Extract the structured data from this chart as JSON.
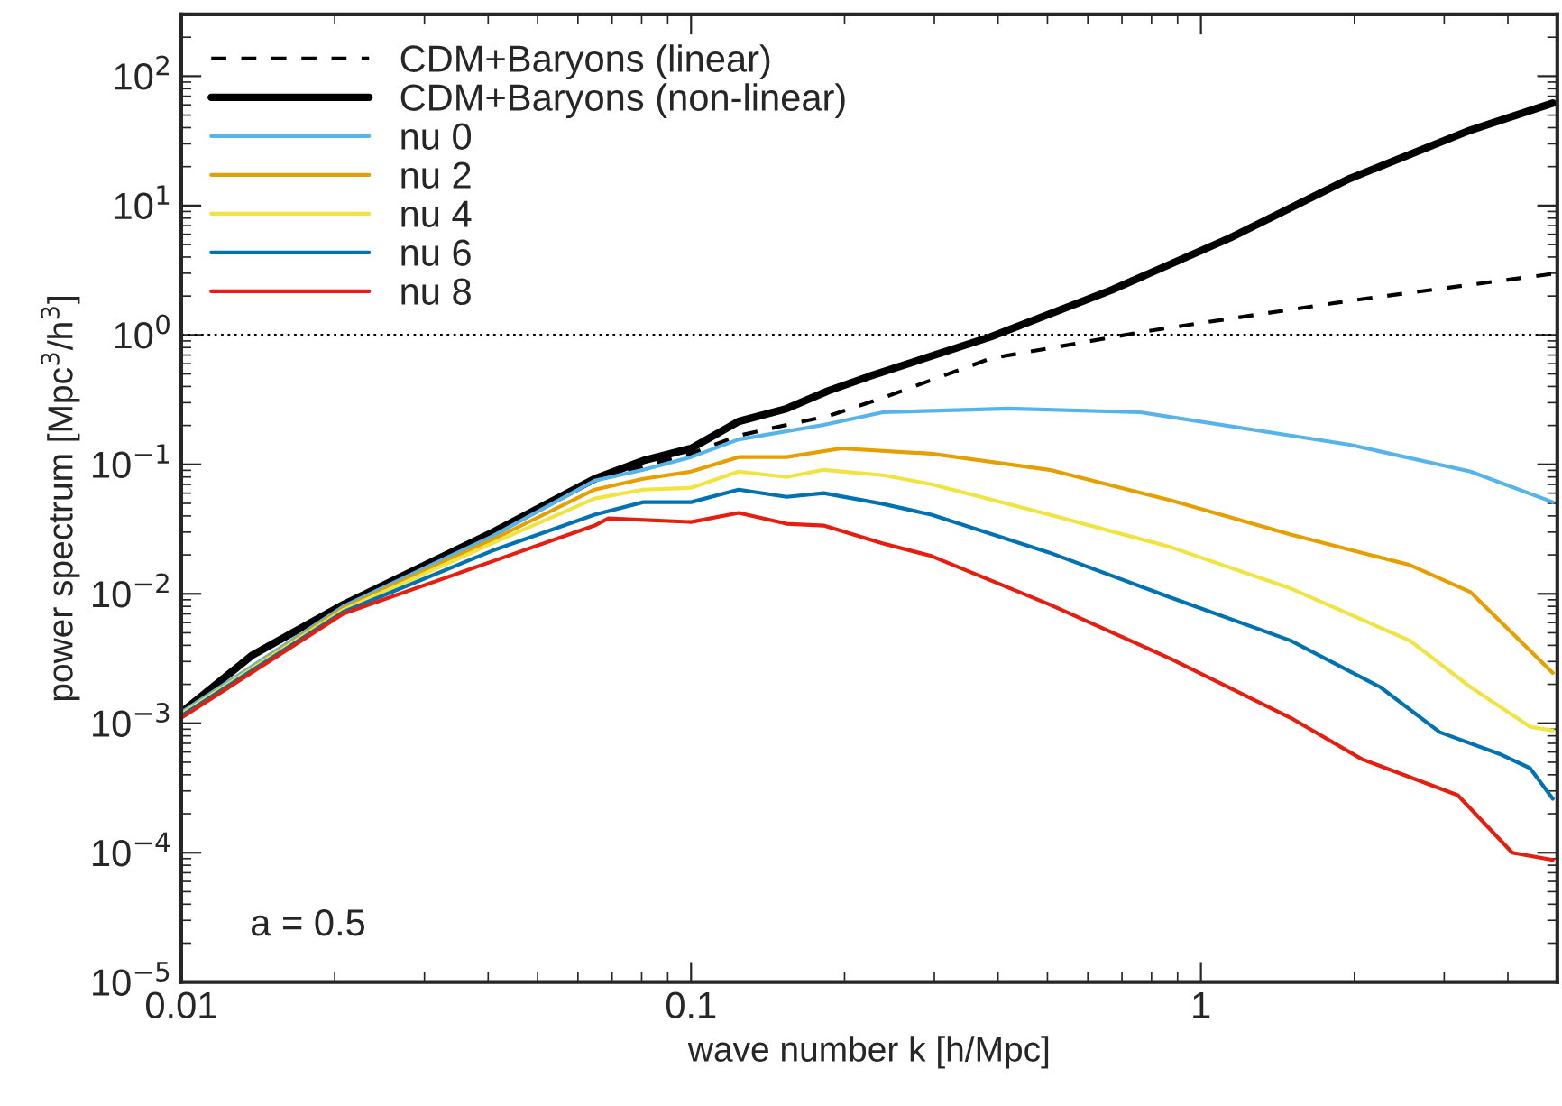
{
  "chart_data": {
    "type": "line",
    "xlabel": "wave number k [h/Mpc]",
    "ylabel": "power spectrum [Mpc$^{3}$/h$^{3}$]",
    "log": "xy",
    "xlim": [
      0.01,
      5
    ],
    "ylim": [
      1e-05,
      300
    ],
    "xticks": [
      0.01,
      0.1,
      1
    ],
    "yticks": [
      {
        "value": 1e-05,
        "label": "10$^{−5}$"
      },
      {
        "value": 0.0001,
        "label": "10$^{−4}$"
      },
      {
        "value": 0.001,
        "label": "10$^{−3}$"
      },
      {
        "value": 0.01,
        "label": "10$^{−2}$"
      },
      {
        "value": 0.1,
        "label": "10$^{−1}$"
      },
      {
        "value": 1,
        "label": "10$^{0}$"
      },
      {
        "value": 10,
        "label": "10$^{1}$"
      },
      {
        "value": 100,
        "label": "10$^{2}$"
      }
    ],
    "grid": false,
    "legend": "top left",
    "marker": "none",
    "ref_lines": [
      {
        "axis": "y",
        "value": 1,
        "color": "#000000",
        "line_style": "dotted"
      }
    ],
    "annotations": [
      "a = 0.5"
    ],
    "series": [
      {
        "name": "CDM+Baryons (linear)",
        "color": "#000000",
        "line_style": "dashed",
        "x": [
          0.01,
          0.0138,
          0.0208,
          0.0407,
          0.0647,
          0.1,
          0.124,
          0.154,
          0.186,
          0.238,
          0.387,
          0.783,
          1.96,
          4.9
        ],
        "values": [
          0.00121,
          0.00337,
          0.00826,
          0.0297,
          0.0774,
          0.121,
          0.167,
          0.202,
          0.237,
          0.327,
          0.659,
          1.07,
          1.84,
          2.97
        ]
      },
      {
        "name": "CDM+Baryons (non-linear)",
        "color": "#000000",
        "line_style": "solid",
        "x": [
          0.01,
          0.0138,
          0.0208,
          0.0407,
          0.0647,
          0.0806,
          0.1,
          0.124,
          0.154,
          0.186,
          0.224,
          0.387,
          0.667,
          1.14,
          1.96,
          3.38,
          4.9
        ],
        "values": [
          0.00121,
          0.00337,
          0.00826,
          0.0297,
          0.0774,
          0.107,
          0.133,
          0.215,
          0.27,
          0.371,
          0.48,
          0.968,
          2.22,
          5.62,
          16.2,
          38.3,
          61.9
        ]
      },
      {
        "name": "nu 0",
        "color": "#56b4e9",
        "line_style": "solid",
        "x": [
          0.01,
          0.0208,
          0.0407,
          0.0647,
          0.0806,
          0.1,
          0.124,
          0.182,
          0.238,
          0.42,
          0.759,
          1.96,
          3.38,
          4.9
        ],
        "values": [
          0.00121,
          0.008,
          0.0278,
          0.075,
          0.0908,
          0.114,
          0.156,
          0.202,
          0.253,
          0.27,
          0.253,
          0.142,
          0.088,
          0.0511
        ]
      },
      {
        "name": "nu 2",
        "color": "#e69f00",
        "line_style": "solid",
        "x": [
          0.01,
          0.0208,
          0.0407,
          0.0647,
          0.0806,
          0.1,
          0.124,
          0.154,
          0.197,
          0.296,
          0.505,
          0.871,
          1.5,
          2.57,
          3.38,
          4.9
        ],
        "values": [
          0.00117,
          0.00774,
          0.0261,
          0.0639,
          0.0774,
          0.088,
          0.114,
          0.114,
          0.133,
          0.121,
          0.0908,
          0.0528,
          0.0287,
          0.0167,
          0.0103,
          0.00245
        ]
      },
      {
        "name": "nu 4",
        "color": "#f0e442",
        "line_style": "solid",
        "x": [
          0.01,
          0.0208,
          0.0407,
          0.0647,
          0.0806,
          0.1,
          0.124,
          0.154,
          0.182,
          0.238,
          0.296,
          0.505,
          0.871,
          1.5,
          2.57,
          3.38,
          4.42,
          4.9
        ],
        "values": [
          0.00117,
          0.0075,
          0.0245,
          0.0545,
          0.0639,
          0.0659,
          0.088,
          0.08,
          0.0908,
          0.0826,
          0.0703,
          0.0409,
          0.023,
          0.011,
          0.00435,
          0.0019,
          0.00094,
          0.00088
        ]
      },
      {
        "name": "nu 6",
        "color": "#0072b2",
        "line_style": "solid",
        "x": [
          0.01,
          0.0208,
          0.0407,
          0.0647,
          0.0806,
          0.1,
          0.124,
          0.154,
          0.182,
          0.238,
          0.296,
          0.505,
          0.871,
          1.5,
          2.25,
          2.94,
          3.85,
          4.42,
          4.9
        ],
        "values": [
          0.00114,
          0.00726,
          0.0215,
          0.0409,
          0.0511,
          0.0511,
          0.0639,
          0.0562,
          0.06,
          0.0495,
          0.0409,
          0.0208,
          0.00938,
          0.00435,
          0.0019,
          0.000853,
          0.00058,
          0.00045,
          0.000261
        ]
      },
      {
        "name": "nu 8",
        "color": "#e51e10",
        "line_style": "solid",
        "x": [
          0.01,
          0.0208,
          0.0407,
          0.0647,
          0.0688,
          0.1,
          0.124,
          0.154,
          0.182,
          0.238,
          0.296,
          0.505,
          0.871,
          1.5,
          2.07,
          2.57,
          3.19,
          4.08,
          4.9
        ],
        "values": [
          0.0011,
          0.00703,
          0.0178,
          0.0337,
          0.0383,
          0.0359,
          0.0422,
          0.0348,
          0.0337,
          0.0245,
          0.0196,
          0.00826,
          0.00316,
          0.0011,
          0.000527,
          0.000383,
          0.000278,
          0.0001,
          8.79e-05
        ]
      }
    ]
  }
}
